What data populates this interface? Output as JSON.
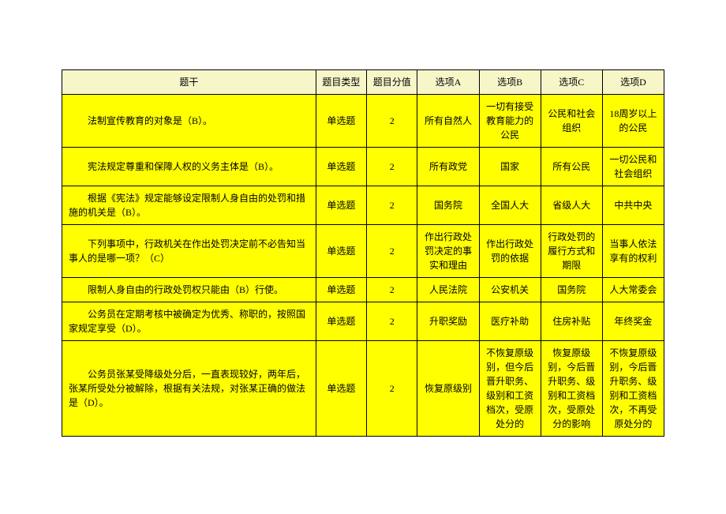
{
  "headers": {
    "question": "题干",
    "type": "题目类型",
    "score": "题目分值",
    "optA": "选项A",
    "optB": "选项B",
    "optC": "选项C",
    "optD": "选项D"
  },
  "rows": [
    {
      "question": "法制宣传教育的对象是（B）。",
      "type": "单选题",
      "score": "2",
      "optA": "所有自然人",
      "optB": "一切有接受教育能力的公民",
      "optC": "公民和社会组织",
      "optD": "18周岁以上的公民"
    },
    {
      "question": "宪法规定尊重和保障人权的义务主体是（B）。",
      "type": "单选题",
      "score": "2",
      "optA": "所有政党",
      "optB": "国家",
      "optC": "所有公民",
      "optD": "一切公民和社会组织"
    },
    {
      "question": "根据《宪法》规定能够设定限制人身自由的处罚和措施的机关是（B）。",
      "type": "单选题",
      "score": "2",
      "optA": "国务院",
      "optB": "全国人大",
      "optC": "省级人大",
      "optD": "中共中央"
    },
    {
      "question": "下列事项中，行政机关在作出处罚决定前不必告知当事人的是哪一项？（C）",
      "type": "单选题",
      "score": "2",
      "optA": "作出行政处罚决定的事实和理由",
      "optB": "作出行政处罚的依据",
      "optC": "行政处罚的履行方式和期限",
      "optD": "当事人依法享有的权利"
    },
    {
      "question": "限制人身自由的行政处罚权只能由（B）行使。",
      "type": "单选题",
      "score": "2",
      "optA": "人民法院",
      "optB": "公安机关",
      "optC": "国务院",
      "optD": "人大常委会"
    },
    {
      "question": "公务员在定期考核中被确定为优秀、称职的，按照国家规定享受（D）。",
      "type": "单选题",
      "score": "2",
      "optA": "升职奖励",
      "optB": "医疗补助",
      "optC": "住房补贴",
      "optD": "年终奖金"
    },
    {
      "question": "公务员张某受降级处分后，一直表现较好，两年后，张某所受处分被解除，根据有关法规，对张某正确的做法是（D）。",
      "type": "单选题",
      "score": "2",
      "optA": "恢复原级别",
      "optB": "不恢复原级别，但今后晋升职务、级别和工资档次，受原处分的",
      "optC": "恢复原级别，今后晋升职务、级别和工资档次，受原处分的影响",
      "optD": "不恢复原级别，今后晋升职务、级别和工资档次，不再受原处分的"
    }
  ]
}
